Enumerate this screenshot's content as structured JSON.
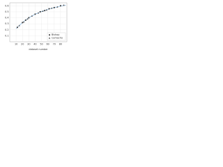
{
  "chart_data": {
    "type": "scatter",
    "x_label": "dataset number",
    "xlim": [
      0,
      90
    ],
    "xticks": [
      10,
      20,
      30,
      40,
      50,
      60,
      70,
      80
    ],
    "ylim": [
      0,
      0.65
    ],
    "yticks": [
      0.1,
      0.2,
      0.3,
      0.4,
      0.5,
      0.6
    ],
    "grid": true,
    "legend": "lower right",
    "series": [
      {
        "name": "Bishop",
        "color": "#333333",
        "marker": "square",
        "x": [
          12,
          20,
          25,
          30,
          40,
          48,
          55,
          62,
          70,
          80
        ],
        "values": [
          0.24,
          0.32,
          0.36,
          0.4,
          0.46,
          0.5,
          0.52,
          0.55,
          0.57,
          0.6
        ]
      },
      {
        "name": "Camacho",
        "color": "#555555",
        "marker": "triangle",
        "x": [
          15,
          22,
          28,
          35,
          45,
          52,
          58,
          66,
          75,
          85
        ],
        "values": [
          0.27,
          0.33,
          0.38,
          0.43,
          0.48,
          0.51,
          0.53,
          0.56,
          0.58,
          0.61
        ]
      }
    ],
    "fit": {
      "color": "#5b9bd5",
      "x": [
        10,
        20,
        30,
        40,
        50,
        60,
        70,
        80,
        88
      ],
      "values": [
        0.22,
        0.32,
        0.4,
        0.46,
        0.505,
        0.54,
        0.57,
        0.595,
        0.61
      ]
    }
  }
}
